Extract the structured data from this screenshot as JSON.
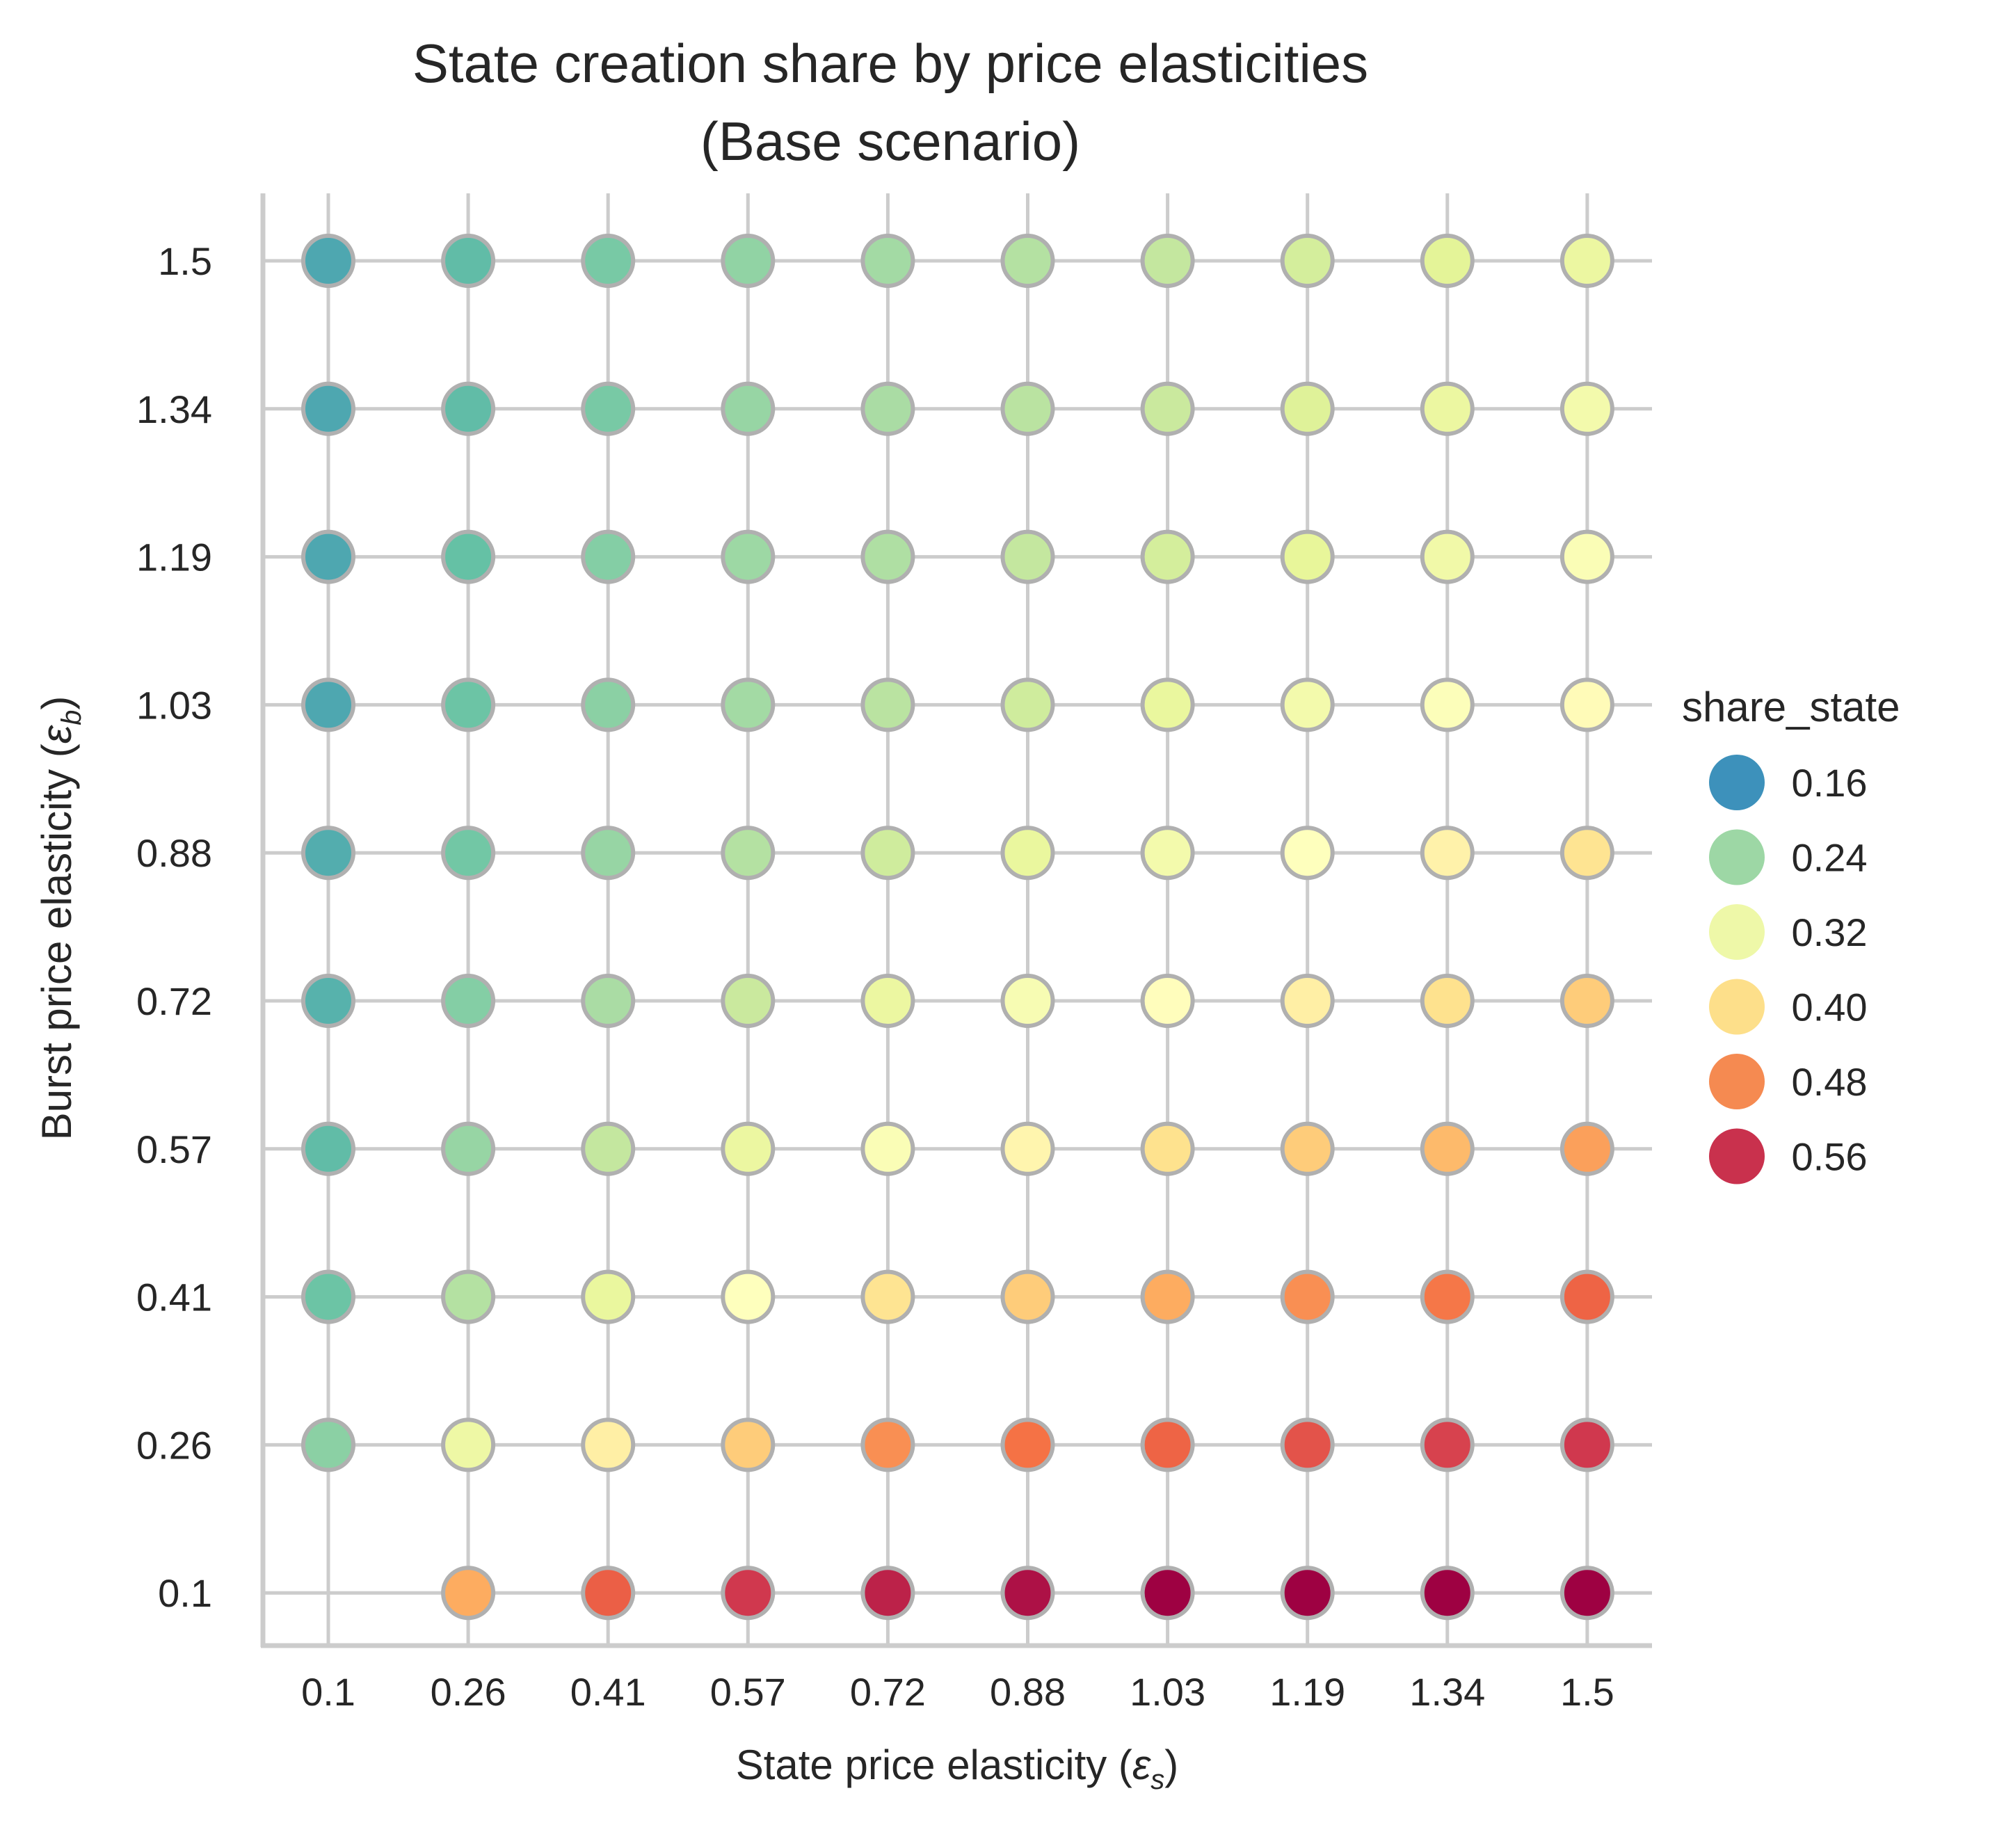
{
  "chart_data": {
    "type": "scatter",
    "title": "State creation share by price elasticities\n(Base scenario)",
    "title_lines": [
      "State creation share by price elasticities",
      "(Base scenario)"
    ],
    "xlabel": "State price elasticity (ε_s)",
    "xlabel_parts": {
      "prefix": "State price elasticity (",
      "symbol": "ε",
      "sub": "s",
      "suffix": ")"
    },
    "ylabel": "Burst price elasticity (ε_b)",
    "ylabel_parts": {
      "prefix": "Burst price elasticity (",
      "symbol": "ε",
      "sub": "b",
      "suffix": ")"
    },
    "x_categories": [
      "0.1",
      "0.26",
      "0.41",
      "0.57",
      "0.72",
      "0.88",
      "1.03",
      "1.19",
      "1.34",
      "1.5"
    ],
    "y_categories": [
      "0.1",
      "0.26",
      "0.41",
      "0.57",
      "0.72",
      "0.88",
      "1.03",
      "1.19",
      "1.34",
      "1.5"
    ],
    "grid": true,
    "colormap": "Spectral_r",
    "color_range": [
      0.12,
      0.62
    ],
    "hue_variable": "share_state",
    "legend": {
      "title": "share_state",
      "placement": "right",
      "entries": [
        {
          "label": "0.16",
          "value": 0.16,
          "color": "#3d91bb"
        },
        {
          "label": "0.24",
          "value": 0.24,
          "color": "#9dd7a5"
        },
        {
          "label": "0.32",
          "value": 0.32,
          "color": "#eef8a8"
        },
        {
          "label": "0.40",
          "value": 0.4,
          "color": "#fddf8a"
        },
        {
          "label": "0.48",
          "value": 0.48,
          "color": "#f58a51"
        },
        {
          "label": "0.56",
          "value": 0.56,
          "color": "#c9314d"
        }
      ]
    },
    "share_state_by_row_note": "rows indexed by y (burst elasticity) top to bottom: 1.5 ... 0.1; columns by x (state elasticity) 0.1 ... 1.5; null = no point",
    "rows": [
      {
        "y": "1.5",
        "values": [
          0.15,
          0.17,
          0.19,
          0.21,
          0.225,
          0.24,
          0.255,
          0.27,
          0.285,
          0.3
        ]
      },
      {
        "y": "1.34",
        "values": [
          0.15,
          0.17,
          0.19,
          0.215,
          0.23,
          0.245,
          0.26,
          0.28,
          0.3,
          0.315
        ]
      },
      {
        "y": "1.19",
        "values": [
          0.15,
          0.175,
          0.2,
          0.22,
          0.235,
          0.255,
          0.27,
          0.29,
          0.31,
          0.33
        ]
      },
      {
        "y": "1.03",
        "values": [
          0.15,
          0.18,
          0.205,
          0.225,
          0.245,
          0.265,
          0.295,
          0.315,
          0.335,
          0.35
        ]
      },
      {
        "y": "0.88",
        "values": [
          0.155,
          0.185,
          0.215,
          0.24,
          0.265,
          0.295,
          0.315,
          0.34,
          0.365,
          0.39
        ]
      },
      {
        "y": "0.72",
        "values": [
          0.16,
          0.2,
          0.23,
          0.26,
          0.3,
          0.325,
          0.345,
          0.37,
          0.395,
          0.42
        ]
      },
      {
        "y": "0.57",
        "values": [
          0.17,
          0.215,
          0.255,
          0.3,
          0.33,
          0.36,
          0.395,
          0.42,
          0.44,
          0.465
        ]
      },
      {
        "y": "0.41",
        "values": [
          0.18,
          0.24,
          0.295,
          0.34,
          0.39,
          0.42,
          0.455,
          0.48,
          0.5,
          0.52
        ]
      },
      {
        "y": "0.26",
        "values": [
          0.205,
          0.305,
          0.37,
          0.42,
          0.48,
          0.505,
          0.52,
          0.54,
          0.56,
          0.57
        ]
      },
      {
        "y": "0.1",
        "values": [
          null,
          0.455,
          0.525,
          0.57,
          0.59,
          0.605,
          0.62,
          0.62,
          0.62,
          0.62
        ]
      }
    ]
  }
}
